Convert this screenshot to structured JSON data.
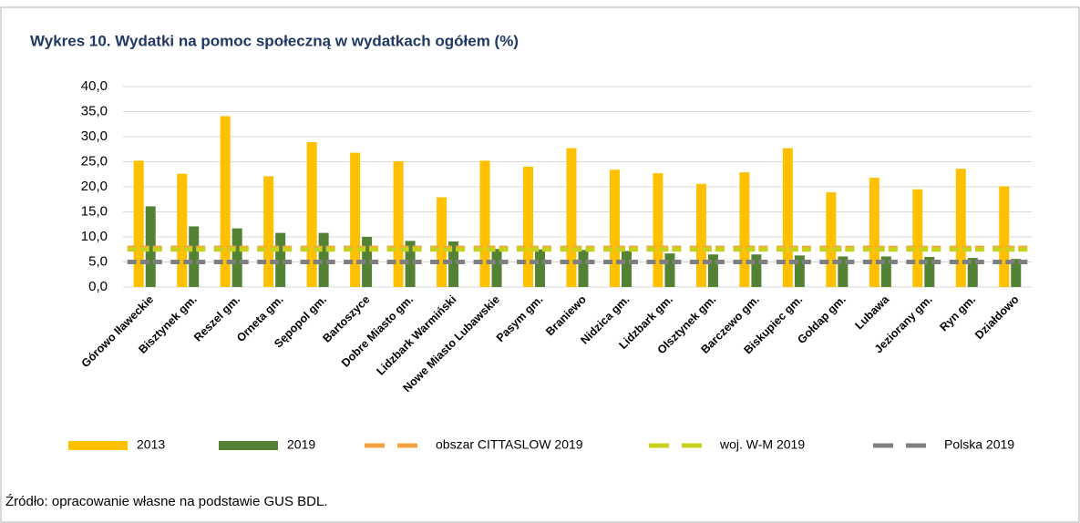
{
  "chart_data": {
    "type": "bar",
    "title": "Wykres 10. Wydatki na pomoc społeczną w wydatkach ogółem (%)",
    "source": "Źródło: opracowanie własne na podstawie GUS BDL.",
    "categories": [
      "Górowo Iławeckie",
      "Bisztynek gm.",
      "Reszel gm.",
      "Orneta gm.",
      "Sępopol gm.",
      "Bartoszyce",
      "Dobre Miasto gm.",
      "Lidzbark Warmiński",
      "Nowe Miasto Lubawskie",
      "Pasym gm.",
      "Braniewo",
      "Nidzica gm.",
      "Lidzbark gm.",
      "Olsztynek gm.",
      "Barczewo gm.",
      "Biskupiec gm.",
      "Gołdap gm.",
      "Lubawa",
      "Jeziorany gm.",
      "Ryn gm.",
      "Działdowo"
    ],
    "series": [
      {
        "name": "2013",
        "kind": "bar",
        "color": "#ffc000",
        "values": [
          25.2,
          22.6,
          34.1,
          22.1,
          28.9,
          26.8,
          25.1,
          17.9,
          25.2,
          24.0,
          27.7,
          23.4,
          22.7,
          20.6,
          22.9,
          27.7,
          18.9,
          21.8,
          19.5,
          23.6,
          20.1
        ]
      },
      {
        "name": "2019",
        "kind": "bar",
        "color": "#548235",
        "values": [
          16.1,
          12.1,
          11.7,
          10.8,
          10.8,
          10.0,
          9.2,
          9.1,
          7.6,
          7.5,
          7.4,
          7.2,
          6.7,
          6.5,
          6.5,
          6.3,
          6.1,
          6.1,
          6.0,
          5.8,
          5.6
        ]
      },
      {
        "name": "obszar CITTASLOW 2019",
        "kind": "dash",
        "color": "#f4a340",
        "values": [
          7.8,
          7.8,
          7.8,
          7.8,
          7.8,
          7.8,
          7.8,
          7.8,
          7.8,
          7.8,
          7.8,
          7.8,
          7.8,
          7.8,
          7.8,
          7.8,
          7.8,
          7.8,
          7.8,
          7.8,
          7.8
        ]
      },
      {
        "name": "woj. W-M 2019",
        "kind": "dash",
        "color": "#c8d21e",
        "values": [
          7.5,
          7.5,
          7.5,
          7.5,
          7.5,
          7.5,
          7.5,
          7.5,
          7.5,
          7.5,
          7.5,
          7.5,
          7.5,
          7.5,
          7.5,
          7.5,
          7.5,
          7.5,
          7.5,
          7.5,
          7.5
        ]
      },
      {
        "name": "Polska 2019",
        "kind": "dash",
        "color": "#7f7f7f",
        "values": [
          5.0,
          5.0,
          5.0,
          5.0,
          5.0,
          5.0,
          5.0,
          5.0,
          5.0,
          5.0,
          5.0,
          5.0,
          5.0,
          5.0,
          5.0,
          5.0,
          5.0,
          5.0,
          5.0,
          5.0,
          5.0
        ]
      }
    ],
    "ylim": [
      0,
      40
    ],
    "yticks": [
      {
        "value": 0,
        "label": "0,0"
      },
      {
        "value": 5,
        "label": "5,0"
      },
      {
        "value": 10,
        "label": "10,0"
      },
      {
        "value": 15,
        "label": "15,0"
      },
      {
        "value": 20,
        "label": "20,0"
      },
      {
        "value": 25,
        "label": "25,0"
      },
      {
        "value": 30,
        "label": "30,0"
      },
      {
        "value": 35,
        "label": "35,0"
      },
      {
        "value": 40,
        "label": "40,0"
      }
    ],
    "grid": true,
    "legend": "bottom"
  }
}
